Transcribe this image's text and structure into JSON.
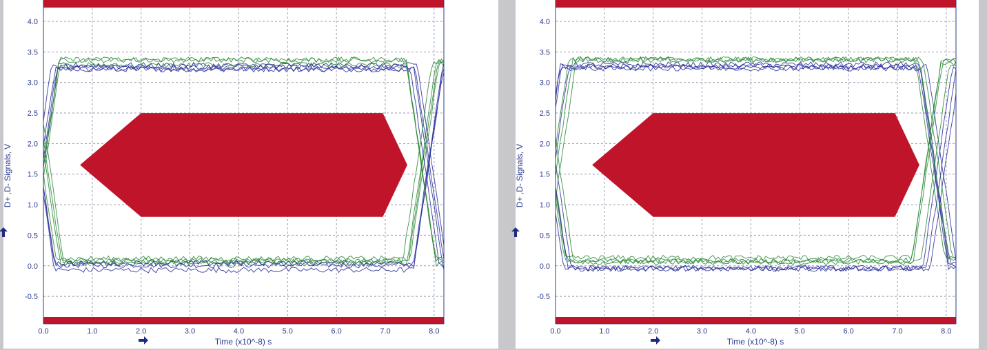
{
  "chart_data": [
    {
      "type": "line",
      "title": "",
      "xlabel": "Time  (x10^-8) s",
      "ylabel": "D+ ,D- Signals, V",
      "xlim": [
        0.0,
        8.2
      ],
      "ylim": [
        -0.95,
        4.35
      ],
      "x_ticks": [
        "0.0",
        "1.0",
        "2.0",
        "3.0",
        "4.0",
        "5.0",
        "6.0",
        "7.0",
        "8.0"
      ],
      "y_ticks": [
        "4.0",
        "3.5",
        "3.0",
        "2.5",
        "2.0",
        "1.5",
        "1.0",
        "0.5",
        "0.0",
        "-0.5"
      ],
      "grid": true,
      "series_colors": {
        "D+": "#2e8b3a",
        "D-": "#2b2f9a"
      },
      "mask_color": "#c0142a",
      "signal_levels": {
        "high": 3.3,
        "low": 0.05
      },
      "eye_mask": {
        "polygon": [
          [
            0.75,
            1.65
          ],
          [
            2.0,
            2.5
          ],
          [
            6.95,
            2.5
          ],
          [
            7.45,
            1.65
          ],
          [
            6.95,
            0.8
          ],
          [
            2.0,
            0.8
          ]
        ]
      },
      "limit_bands": {
        "upper": 4.35,
        "lower": -0.95
      }
    },
    {
      "type": "line",
      "title": "",
      "xlabel": "Time  (x10^-8) s",
      "ylabel": "D+ ,D- Signals, V",
      "xlim": [
        0.0,
        8.2
      ],
      "ylim": [
        -0.95,
        4.35
      ],
      "x_ticks": [
        "0.0",
        "1.0",
        "2.0",
        "3.0",
        "4.0",
        "5.0",
        "6.0",
        "7.0",
        "8.0"
      ],
      "y_ticks": [
        "4.0",
        "3.5",
        "3.0",
        "2.5",
        "2.0",
        "1.5",
        "1.0",
        "0.5",
        "0.0",
        "-0.5"
      ],
      "grid": true,
      "series_colors": {
        "D+": "#2e8b3a",
        "D-": "#2b2f9a"
      },
      "mask_color": "#c0142a",
      "signal_levels": {
        "high": 3.3,
        "low": 0.05
      },
      "eye_mask": {
        "polygon": [
          [
            0.75,
            1.65
          ],
          [
            2.0,
            2.5
          ],
          [
            6.95,
            2.5
          ],
          [
            7.45,
            1.65
          ],
          [
            6.95,
            0.8
          ],
          [
            2.0,
            0.8
          ]
        ]
      },
      "limit_bands": {
        "upper": 4.35,
        "lower": -0.95
      }
    }
  ]
}
